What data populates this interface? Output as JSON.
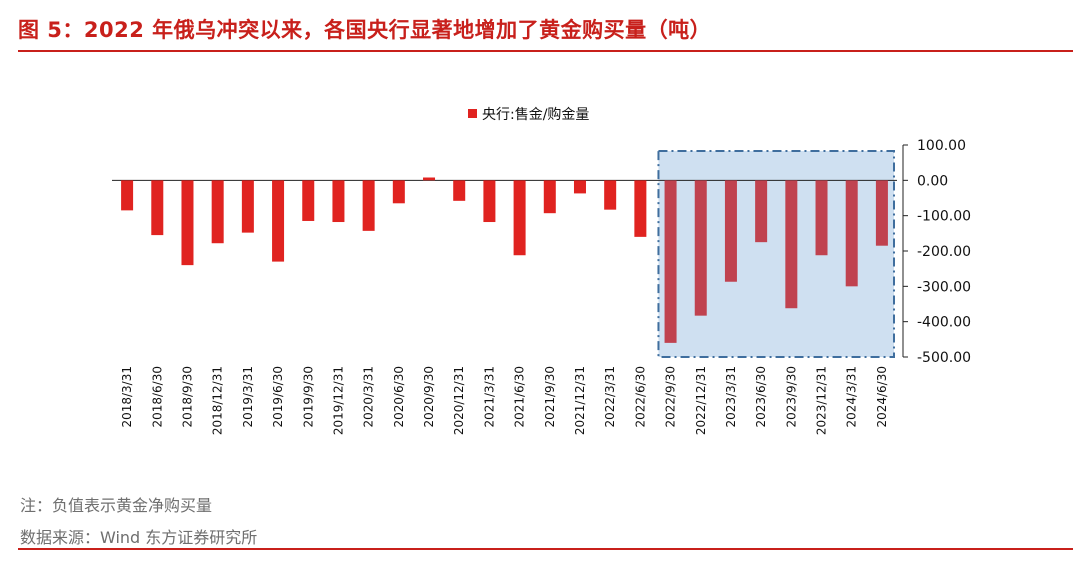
{
  "header": {
    "title": "图 5：2022 年俄乌冲突以来，各国央行显著地增加了黄金购买量（吨）"
  },
  "footer": {
    "note": "注：负值表示黄金净购买量",
    "source": "数据来源：Wind 东方证券研究所"
  },
  "colors": {
    "accent": "#c8201b",
    "bar_normal": "#e02320",
    "bar_highlight": "#c0424f",
    "highlight_fill": "#cfe0f1",
    "highlight_border": "#3f6e9e"
  },
  "chart_data": {
    "type": "bar",
    "title": "",
    "xlabel": "",
    "ylabel": "",
    "categories": [
      "2018/3/31",
      "2018/6/30",
      "2018/9/30",
      "2018/12/31",
      "2019/3/31",
      "2019/6/30",
      "2019/9/30",
      "2019/12/31",
      "2020/3/31",
      "2020/6/30",
      "2020/9/30",
      "2020/12/31",
      "2021/3/31",
      "2021/6/30",
      "2021/9/30",
      "2021/12/31",
      "2022/3/31",
      "2022/6/30",
      "2022/9/30",
      "2022/12/31",
      "2023/3/31",
      "2023/6/30",
      "2023/9/30",
      "2023/12/31",
      "2024/3/31",
      "2024/6/30"
    ],
    "series": [
      {
        "name": "央行:售金/购金量",
        "values": [
          -85,
          -155,
          -240,
          -178,
          -148,
          -230,
          -115,
          -118,
          -143,
          -65,
          8,
          -58,
          -118,
          -212,
          -93,
          -37,
          -83,
          -160,
          -460,
          -383,
          -287,
          -175,
          -362,
          -212,
          -300,
          -185
        ]
      }
    ],
    "highlight_range": [
      "2022/9/30",
      "2024/6/30"
    ],
    "ylim": [
      -500,
      100
    ],
    "yticks": [
      100,
      0,
      -100,
      -200,
      -300,
      -400,
      -500
    ],
    "ytick_labels": [
      "100.00",
      "0.00",
      "-100.00",
      "-200.00",
      "-300.00",
      "-400.00",
      "-500.00"
    ],
    "y_axis_position": "right",
    "legend_position": "top-center",
    "grid": false
  }
}
